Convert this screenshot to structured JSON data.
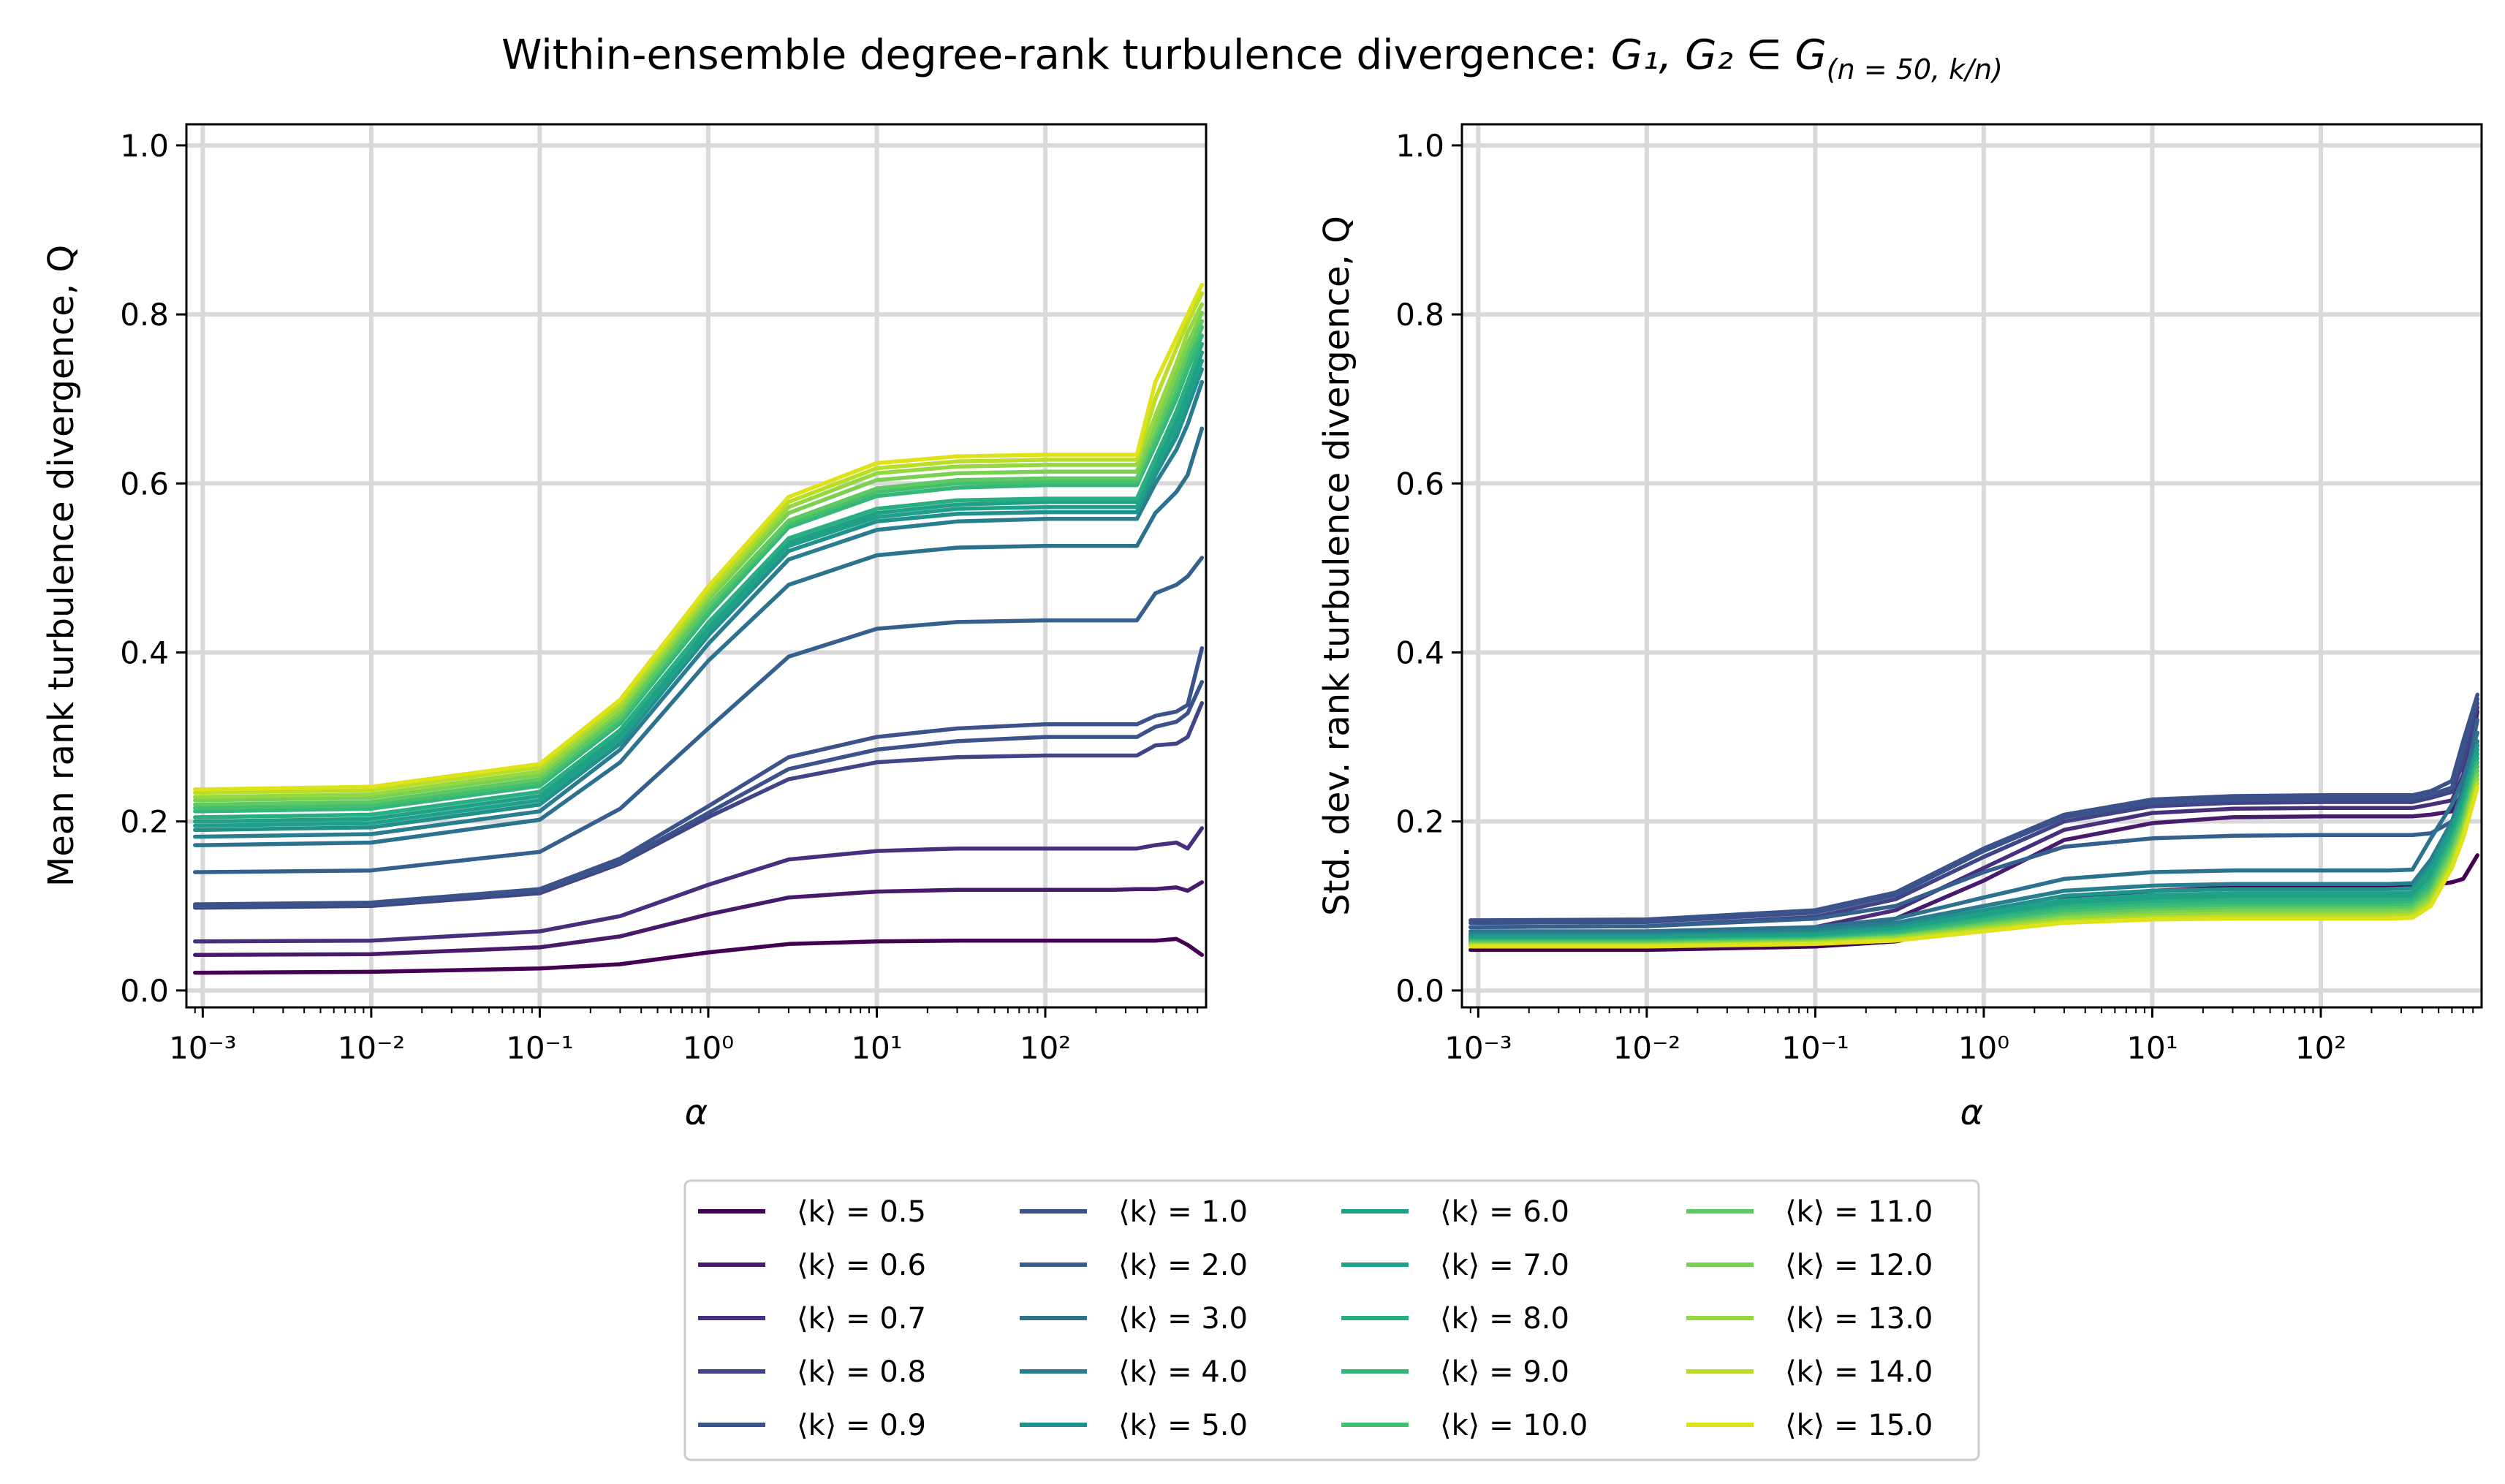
{
  "figure": {
    "title_text": "Within-ensemble degree-rank turbulence divergence: ",
    "title_math": "G₁, G₂ ∈ G",
    "title_sub": "(n = 50, k/n)"
  },
  "colors": {
    "grid": "#d9d9d9",
    "axis": "#000000",
    "legend_border": "#cccccc"
  },
  "chart_data": [
    {
      "type": "line",
      "title": "",
      "xlabel": "α",
      "ylabel": "Mean rank turbulence divergence, Q",
      "xscale": "log",
      "xlim": [
        0.0008,
        900
      ],
      "ylim": [
        -0.02,
        1.025
      ],
      "x_ticks": [
        {
          "value": 0.001,
          "label": "10⁻³"
        },
        {
          "value": 0.01,
          "label": "10⁻²"
        },
        {
          "value": 0.1,
          "label": "10⁻¹"
        },
        {
          "value": 1,
          "label": "10⁰"
        },
        {
          "value": 10,
          "label": "10¹"
        },
        {
          "value": 100,
          "label": "10²"
        }
      ],
      "y_ticks": [
        {
          "value": 0.0,
          "label": "0.0"
        },
        {
          "value": 0.2,
          "label": "0.2"
        },
        {
          "value": 0.4,
          "label": "0.4"
        },
        {
          "value": 0.6,
          "label": "0.6"
        },
        {
          "value": 0.8,
          "label": "0.8"
        },
        {
          "value": 1.0,
          "label": "1.0"
        }
      ],
      "grid": true,
      "x": [
        0.0009,
        0.001,
        0.01,
        0.1,
        0.3,
        1,
        3,
        10,
        30,
        100,
        250,
        350,
        450,
        600,
        700,
        850
      ],
      "series": [
        {
          "name": "⟨k⟩ = 0.5",
          "color": "#440154",
          "values": [
            0.021,
            0.021,
            0.022,
            0.026,
            0.031,
            0.045,
            0.055,
            0.058,
            0.059,
            0.059,
            0.059,
            0.059,
            0.059,
            0.061,
            0.054,
            0.042
          ]
        },
        {
          "name": "⟨k⟩ = 0.6",
          "color": "#481a6c",
          "values": [
            0.042,
            0.042,
            0.043,
            0.051,
            0.064,
            0.09,
            0.11,
            0.117,
            0.119,
            0.119,
            0.119,
            0.12,
            0.12,
            0.122,
            0.118,
            0.128
          ]
        },
        {
          "name": "⟨k⟩ = 0.7",
          "color": "#472f7d",
          "values": [
            0.058,
            0.058,
            0.059,
            0.07,
            0.088,
            0.125,
            0.155,
            0.165,
            0.168,
            0.168,
            0.168,
            0.168,
            0.172,
            0.175,
            0.168,
            0.192
          ]
        },
        {
          "name": "⟨k⟩ = 0.8",
          "color": "#414487",
          "values": [
            0.098,
            0.098,
            0.1,
            0.115,
            0.15,
            0.205,
            0.25,
            0.27,
            0.276,
            0.278,
            0.278,
            0.278,
            0.29,
            0.292,
            0.3,
            0.34
          ]
        },
        {
          "name": "⟨k⟩ = 0.9",
          "color": "#3b528b",
          "values": [
            0.1,
            0.1,
            0.102,
            0.118,
            0.152,
            0.21,
            0.262,
            0.285,
            0.295,
            0.3,
            0.3,
            0.3,
            0.312,
            0.318,
            0.328,
            0.365
          ]
        },
        {
          "name": "⟨k⟩ = 1.0",
          "color": "#3b528b",
          "values": [
            0.102,
            0.102,
            0.104,
            0.12,
            0.156,
            0.218,
            0.276,
            0.3,
            0.31,
            0.315,
            0.315,
            0.315,
            0.325,
            0.33,
            0.338,
            0.405
          ]
        },
        {
          "name": "⟨k⟩ = 2.0",
          "color": "#355f8d",
          "values": [
            0.14,
            0.14,
            0.142,
            0.164,
            0.215,
            0.31,
            0.395,
            0.428,
            0.436,
            0.438,
            0.438,
            0.438,
            0.47,
            0.48,
            0.49,
            0.512
          ]
        },
        {
          "name": "⟨k⟩ = 3.0",
          "color": "#2c728e",
          "values": [
            0.172,
            0.172,
            0.175,
            0.202,
            0.27,
            0.39,
            0.48,
            0.515,
            0.524,
            0.526,
            0.526,
            0.526,
            0.565,
            0.59,
            0.61,
            0.665
          ]
        },
        {
          "name": "⟨k⟩ = 4.0",
          "color": "#287d8e",
          "values": [
            0.182,
            0.182,
            0.185,
            0.212,
            0.285,
            0.41,
            0.51,
            0.545,
            0.555,
            0.558,
            0.558,
            0.558,
            0.6,
            0.64,
            0.67,
            0.72
          ]
        },
        {
          "name": "⟨k⟩ = 5.0",
          "color": "#21918c",
          "values": [
            0.19,
            0.19,
            0.193,
            0.22,
            0.292,
            0.42,
            0.52,
            0.555,
            0.564,
            0.566,
            0.566,
            0.566,
            0.61,
            0.655,
            0.69,
            0.735
          ]
        },
        {
          "name": "⟨k⟩ = 6.0",
          "color": "#1fa088",
          "values": [
            0.195,
            0.195,
            0.198,
            0.225,
            0.298,
            0.425,
            0.526,
            0.56,
            0.57,
            0.572,
            0.572,
            0.572,
            0.618,
            0.665,
            0.7,
            0.745
          ]
        },
        {
          "name": "⟨k⟩ = 7.0",
          "color": "#1fa187",
          "values": [
            0.2,
            0.2,
            0.203,
            0.23,
            0.303,
            0.43,
            0.53,
            0.565,
            0.575,
            0.578,
            0.578,
            0.578,
            0.625,
            0.675,
            0.71,
            0.755
          ]
        },
        {
          "name": "⟨k⟩ = 8.0",
          "color": "#28ae80",
          "values": [
            0.205,
            0.205,
            0.208,
            0.235,
            0.308,
            0.435,
            0.535,
            0.57,
            0.58,
            0.582,
            0.582,
            0.582,
            0.63,
            0.685,
            0.72,
            0.765
          ]
        },
        {
          "name": "⟨k⟩ = 9.0",
          "color": "#35b779",
          "values": [
            0.212,
            0.212,
            0.215,
            0.242,
            0.316,
            0.445,
            0.548,
            0.585,
            0.595,
            0.598,
            0.598,
            0.598,
            0.645,
            0.7,
            0.735,
            0.775
          ]
        },
        {
          "name": "⟨k⟩ = 10.0",
          "color": "#44bf70",
          "values": [
            0.216,
            0.216,
            0.219,
            0.246,
            0.32,
            0.45,
            0.552,
            0.59,
            0.6,
            0.602,
            0.602,
            0.602,
            0.652,
            0.71,
            0.745,
            0.785
          ]
        },
        {
          "name": "⟨k⟩ = 11.0",
          "color": "#5ec962",
          "values": [
            0.22,
            0.22,
            0.223,
            0.25,
            0.324,
            0.455,
            0.556,
            0.594,
            0.604,
            0.606,
            0.606,
            0.606,
            0.66,
            0.718,
            0.755,
            0.792
          ]
        },
        {
          "name": "⟨k⟩ = 12.0",
          "color": "#7ad151",
          "values": [
            0.225,
            0.225,
            0.228,
            0.255,
            0.33,
            0.462,
            0.565,
            0.604,
            0.612,
            0.614,
            0.614,
            0.614,
            0.668,
            0.73,
            0.765,
            0.802
          ]
        },
        {
          "name": "⟨k⟩ = 13.0",
          "color": "#95d840",
          "values": [
            0.229,
            0.229,
            0.232,
            0.259,
            0.334,
            0.467,
            0.572,
            0.612,
            0.62,
            0.622,
            0.622,
            0.622,
            0.68,
            0.742,
            0.778,
            0.812
          ]
        },
        {
          "name": "⟨k⟩ = 14.0",
          "color": "#bade28",
          "values": [
            0.234,
            0.234,
            0.237,
            0.264,
            0.34,
            0.472,
            0.578,
            0.618,
            0.626,
            0.628,
            0.628,
            0.628,
            0.7,
            0.76,
            0.79,
            0.825
          ]
        },
        {
          "name": "⟨k⟩ = 15.0",
          "color": "#dde318",
          "values": [
            0.238,
            0.238,
            0.241,
            0.268,
            0.344,
            0.478,
            0.584,
            0.624,
            0.632,
            0.634,
            0.634,
            0.634,
            0.72,
            0.772,
            0.8,
            0.835
          ]
        }
      ]
    },
    {
      "type": "line",
      "title": "",
      "xlabel": "α",
      "ylabel": "Std. dev. rank turbulence divergence, Q",
      "xscale": "log",
      "xlim": [
        0.0008,
        900
      ],
      "ylim": [
        -0.02,
        1.025
      ],
      "x_ticks": [
        {
          "value": 0.001,
          "label": "10⁻³"
        },
        {
          "value": 0.01,
          "label": "10⁻²"
        },
        {
          "value": 0.1,
          "label": "10⁻¹"
        },
        {
          "value": 1,
          "label": "10⁰"
        },
        {
          "value": 10,
          "label": "10¹"
        },
        {
          "value": 100,
          "label": "10²"
        }
      ],
      "y_ticks": [
        {
          "value": 0.0,
          "label": "0.0"
        },
        {
          "value": 0.2,
          "label": "0.2"
        },
        {
          "value": 0.4,
          "label": "0.4"
        },
        {
          "value": 0.6,
          "label": "0.6"
        },
        {
          "value": 0.8,
          "label": "0.8"
        },
        {
          "value": 1.0,
          "label": "1.0"
        }
      ],
      "grid": true,
      "x": [
        0.0009,
        0.001,
        0.01,
        0.1,
        0.3,
        1,
        3,
        10,
        30,
        100,
        250,
        350,
        450,
        600,
        700,
        850
      ],
      "series": [
        {
          "name": "⟨k⟩ = 0.5",
          "color": "#440154",
          "values": [
            0.048,
            0.048,
            0.048,
            0.052,
            0.058,
            0.08,
            0.108,
            0.118,
            0.122,
            0.123,
            0.123,
            0.123,
            0.124,
            0.128,
            0.132,
            0.16
          ]
        },
        {
          "name": "⟨k⟩ = 0.6",
          "color": "#481a6c",
          "values": [
            0.058,
            0.058,
            0.059,
            0.068,
            0.085,
            0.13,
            0.178,
            0.198,
            0.205,
            0.206,
            0.206,
            0.206,
            0.208,
            0.212,
            0.235,
            0.33
          ]
        },
        {
          "name": "⟨k⟩ = 0.7",
          "color": "#472f7d",
          "values": [
            0.065,
            0.065,
            0.066,
            0.075,
            0.095,
            0.145,
            0.19,
            0.21,
            0.215,
            0.216,
            0.216,
            0.216,
            0.22,
            0.225,
            0.255,
            0.335
          ]
        },
        {
          "name": "⟨k⟩ = 0.8",
          "color": "#414487",
          "values": [
            0.075,
            0.075,
            0.076,
            0.087,
            0.108,
            0.158,
            0.2,
            0.218,
            0.222,
            0.223,
            0.223,
            0.223,
            0.228,
            0.235,
            0.27,
            0.34
          ]
        },
        {
          "name": "⟨k⟩ = 0.9",
          "color": "#3b528b",
          "values": [
            0.08,
            0.08,
            0.081,
            0.092,
            0.113,
            0.165,
            0.205,
            0.222,
            0.226,
            0.227,
            0.227,
            0.227,
            0.232,
            0.24,
            0.285,
            0.345
          ]
        },
        {
          "name": "⟨k⟩ = 1.0",
          "color": "#3b528b",
          "values": [
            0.083,
            0.083,
            0.084,
            0.095,
            0.116,
            0.168,
            0.208,
            0.226,
            0.23,
            0.231,
            0.231,
            0.231,
            0.236,
            0.248,
            0.295,
            0.35
          ]
        },
        {
          "name": "⟨k⟩ = 2.0",
          "color": "#355f8d",
          "values": [
            0.075,
            0.075,
            0.076,
            0.085,
            0.1,
            0.14,
            0.17,
            0.18,
            0.183,
            0.184,
            0.184,
            0.184,
            0.186,
            0.2,
            0.24,
            0.32
          ]
        },
        {
          "name": "⟨k⟩ = 3.0",
          "color": "#2c728e",
          "values": [
            0.07,
            0.07,
            0.07,
            0.075,
            0.085,
            0.11,
            0.132,
            0.14,
            0.142,
            0.142,
            0.142,
            0.143,
            0.18,
            0.22,
            0.25,
            0.305
          ]
        },
        {
          "name": "⟨k⟩ = 4.0",
          "color": "#287d8e",
          "values": [
            0.067,
            0.067,
            0.067,
            0.071,
            0.08,
            0.1,
            0.118,
            0.124,
            0.126,
            0.126,
            0.126,
            0.127,
            0.155,
            0.2,
            0.235,
            0.295
          ]
        },
        {
          "name": "⟨k⟩ = 5.0",
          "color": "#21918c",
          "values": [
            0.065,
            0.065,
            0.065,
            0.068,
            0.076,
            0.095,
            0.112,
            0.118,
            0.12,
            0.12,
            0.12,
            0.121,
            0.148,
            0.195,
            0.23,
            0.29
          ]
        },
        {
          "name": "⟨k⟩ = 6.0",
          "color": "#1fa088",
          "values": [
            0.063,
            0.063,
            0.063,
            0.066,
            0.073,
            0.091,
            0.107,
            0.113,
            0.115,
            0.115,
            0.115,
            0.116,
            0.142,
            0.19,
            0.225,
            0.285
          ]
        },
        {
          "name": "⟨k⟩ = 7.0",
          "color": "#1fa187",
          "values": [
            0.061,
            0.061,
            0.061,
            0.064,
            0.071,
            0.088,
            0.103,
            0.109,
            0.111,
            0.111,
            0.111,
            0.112,
            0.136,
            0.185,
            0.22,
            0.28
          ]
        },
        {
          "name": "⟨k⟩ = 8.0",
          "color": "#28ae80",
          "values": [
            0.059,
            0.059,
            0.059,
            0.062,
            0.069,
            0.085,
            0.099,
            0.105,
            0.107,
            0.107,
            0.107,
            0.108,
            0.13,
            0.18,
            0.215,
            0.275
          ]
        },
        {
          "name": "⟨k⟩ = 9.0",
          "color": "#35b779",
          "values": [
            0.058,
            0.058,
            0.058,
            0.061,
            0.067,
            0.083,
            0.096,
            0.101,
            0.103,
            0.103,
            0.103,
            0.104,
            0.125,
            0.175,
            0.21,
            0.27
          ]
        },
        {
          "name": "⟨k⟩ = 10.0",
          "color": "#44bf70",
          "values": [
            0.057,
            0.057,
            0.057,
            0.06,
            0.065,
            0.08,
            0.093,
            0.098,
            0.1,
            0.1,
            0.1,
            0.101,
            0.12,
            0.17,
            0.205,
            0.265
          ]
        },
        {
          "name": "⟨k⟩ = 11.0",
          "color": "#5ec962",
          "values": [
            0.056,
            0.056,
            0.056,
            0.059,
            0.064,
            0.078,
            0.09,
            0.095,
            0.097,
            0.097,
            0.097,
            0.098,
            0.116,
            0.165,
            0.2,
            0.26
          ]
        },
        {
          "name": "⟨k⟩ = 12.0",
          "color": "#7ad151",
          "values": [
            0.055,
            0.055,
            0.055,
            0.058,
            0.063,
            0.076,
            0.087,
            0.092,
            0.094,
            0.094,
            0.094,
            0.095,
            0.112,
            0.16,
            0.195,
            0.255
          ]
        },
        {
          "name": "⟨k⟩ = 13.0",
          "color": "#95d840",
          "values": [
            0.054,
            0.054,
            0.054,
            0.057,
            0.062,
            0.074,
            0.085,
            0.089,
            0.091,
            0.091,
            0.091,
            0.092,
            0.108,
            0.155,
            0.19,
            0.25
          ]
        },
        {
          "name": "⟨k⟩ = 14.0",
          "color": "#bade28",
          "values": [
            0.053,
            0.053,
            0.053,
            0.056,
            0.06,
            0.072,
            0.082,
            0.086,
            0.088,
            0.088,
            0.088,
            0.089,
            0.104,
            0.15,
            0.185,
            0.245
          ]
        },
        {
          "name": "⟨k⟩ = 15.0",
          "color": "#dde318",
          "values": [
            0.052,
            0.052,
            0.052,
            0.055,
            0.059,
            0.07,
            0.08,
            0.084,
            0.085,
            0.085,
            0.085,
            0.086,
            0.1,
            0.145,
            0.18,
            0.24
          ]
        }
      ]
    }
  ]
}
